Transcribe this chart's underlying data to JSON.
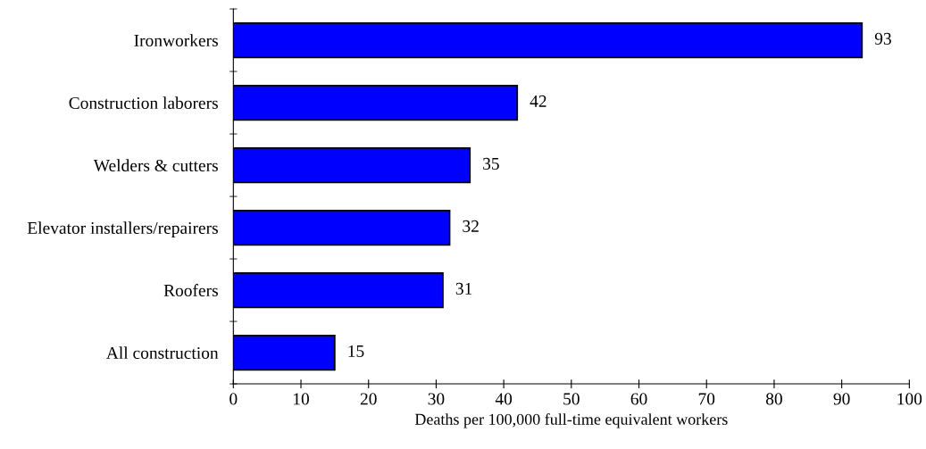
{
  "chart_data": {
    "type": "bar",
    "orientation": "horizontal",
    "xlabel": "Deaths per 100,000 full-time equivalent workers",
    "categories": [
      "Ironworkers",
      "Construction laborers",
      "Welders & cutters",
      "Elevator installers/repairers",
      "Roofers",
      "All construction"
    ],
    "values": [
      93,
      42,
      35,
      32,
      31,
      15
    ],
    "color": "#0000ff",
    "xlim": [
      0,
      100
    ],
    "xticks": [
      0,
      10,
      20,
      30,
      40,
      50,
      60,
      70,
      80,
      90,
      100
    ],
    "grid": false,
    "legend": false,
    "data_labels": true
  }
}
